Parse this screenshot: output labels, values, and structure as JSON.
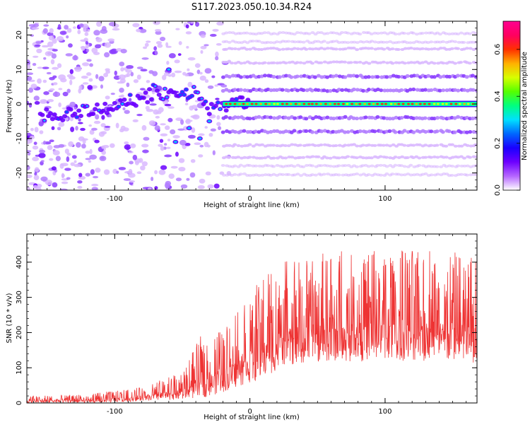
{
  "title": "S117.2023.050.10.34.R24",
  "chart_data": [
    {
      "type": "heatmap",
      "xlabel": "Height of straight line (km)",
      "ylabel": "Frequency (Hz)",
      "xlim": [
        -165,
        168
      ],
      "ylim": [
        -25,
        24
      ],
      "x_ticks": [
        -100,
        0,
        100
      ],
      "x_tick_labels": [
        "-100",
        "0",
        "100"
      ],
      "y_ticks": [
        -20,
        -10,
        0,
        10,
        20
      ],
      "y_tick_labels": [
        "-20",
        "-10",
        "0",
        "10",
        "20"
      ],
      "grid": false,
      "colormap": "rainbow (purple-blue-cyan-green-yellow-red-magenta)",
      "colorbar": {
        "label": "Normalized spectral amplitude",
        "range": [
          0,
          0.72
        ],
        "ticks": [
          0,
          0.2,
          0.4,
          0.6
        ],
        "tick_labels": [
          "0.0",
          "0.2",
          "0.4",
          "0.6"
        ],
        "colors": [
          "#ffffff",
          "#b565ff",
          "#6d00ff",
          "#1a00ff",
          "#0066ff",
          "#00e0ff",
          "#00ff80",
          "#55ff00",
          "#d8ff00",
          "#ffb000",
          "#ff3000",
          "#ff0060",
          "#ff0090"
        ]
      },
      "harmonic_lines_hz": [
        -20.5,
        -18,
        -15.5,
        -12,
        -8,
        -4,
        0,
        4,
        8,
        12,
        16,
        18,
        20.5
      ],
      "ridge_trace": [
        {
          "x": -155,
          "f": -3
        },
        {
          "x": -140,
          "f": -3
        },
        {
          "x": -125,
          "f": -2
        },
        {
          "x": -110,
          "f": -2
        },
        {
          "x": -100,
          "f": 0
        },
        {
          "x": -90,
          "f": 1
        },
        {
          "x": -80,
          "f": 1
        },
        {
          "x": -70,
          "f": 4
        },
        {
          "x": -60,
          "f": 2
        },
        {
          "x": -50,
          "f": 3
        },
        {
          "x": -40,
          "f": 3
        },
        {
          "x": -30,
          "f": -2
        },
        {
          "x": -22,
          "f": 0
        },
        {
          "x": -10,
          "f": 0
        },
        {
          "x": 0,
          "f": 0
        },
        {
          "x": 168,
          "f": 0
        }
      ]
    },
    {
      "type": "line",
      "xlabel": "Height of straight line (km)",
      "ylabel": "SNR (10 * v/v)",
      "xlim": [
        -165,
        168
      ],
      "ylim": [
        0,
        480
      ],
      "x_ticks": [
        -100,
        0,
        100
      ],
      "x_tick_labels": [
        "-100",
        "0",
        "100"
      ],
      "y_ticks": [
        0,
        100,
        200,
        300,
        400
      ],
      "y_tick_labels": [
        "0",
        "100",
        "200",
        "300",
        "400"
      ],
      "grid": false,
      "series": [
        {
          "color": "#ee3333",
          "envelope": [
            {
              "x": -165,
              "low": 0,
              "high": 20
            },
            {
              "x": -120,
              "low": 0,
              "high": 25
            },
            {
              "x": -80,
              "low": 5,
              "high": 45
            },
            {
              "x": -50,
              "low": 10,
              "high": 90
            },
            {
              "x": -35,
              "low": 15,
              "high": 200
            },
            {
              "x": -20,
              "low": 30,
              "high": 210
            },
            {
              "x": -5,
              "low": 50,
              "high": 290
            },
            {
              "x": 10,
              "low": 70,
              "high": 360
            },
            {
              "x": 25,
              "low": 105,
              "high": 400
            },
            {
              "x": 50,
              "low": 115,
              "high": 430
            },
            {
              "x": 100,
              "low": 120,
              "high": 440
            },
            {
              "x": 150,
              "low": 115,
              "high": 440
            },
            {
              "x": 168,
              "low": 110,
              "high": 420
            }
          ]
        }
      ]
    }
  ]
}
